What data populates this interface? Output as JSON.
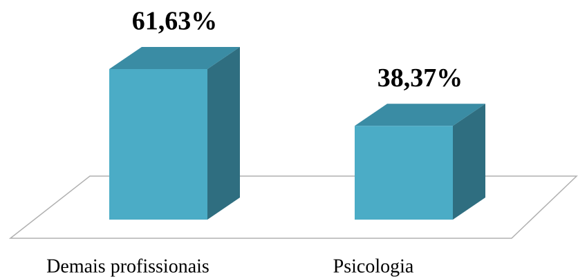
{
  "chart_data": {
    "type": "bar3d",
    "categories": [
      "Demais profissionais",
      "Psicologia"
    ],
    "values": [
      61.63,
      38.37
    ],
    "value_labels": [
      "61,63%",
      "38,37%"
    ],
    "color": "#4bacc6"
  }
}
